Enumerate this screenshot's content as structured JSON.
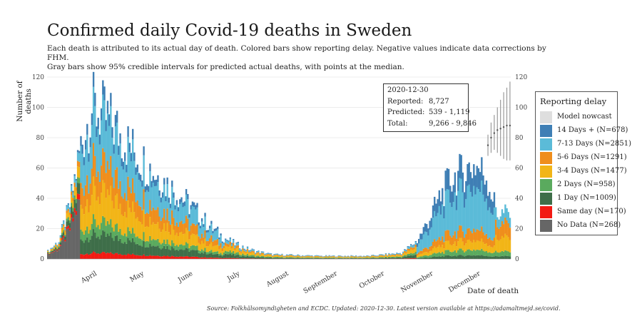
{
  "title": "Confirmed daily Covid-19 deaths in Sweden",
  "subtitle_line1": "Each death is attributed to its actual day of death. Colored bars show reporting delay. Negative values indicate data corrections by FHM.",
  "subtitle_line2": "Gray bars show 95% credible intervals for predicted actual deaths, with points at the median.",
  "source": "Source: Folkhälsomyndigheten and ECDC. Updated: 2020-12-30. Latest version available at https://adamaltmejd.se/covid.",
  "info": {
    "date": "2020-12-30",
    "reported_label": "Reported:",
    "reported_value": "8,727",
    "predicted_label": "Predicted:",
    "predicted_value": "539 - 1,119",
    "total_label": "Total:",
    "total_value": "9,266 - 9,846"
  },
  "legend": {
    "title": "Reporting delay",
    "items": [
      {
        "label": "Model nowcast",
        "color": "#dedede"
      },
      {
        "label": "14 Days + (N=678)",
        "color": "#3f7fb5"
      },
      {
        "label": "7-13 Days (N=2851)",
        "color": "#5bbbd8"
      },
      {
        "label": "5-6 Days (N=1291)",
        "color": "#ef8e1c"
      },
      {
        "label": "3-4 Days (N=1477)",
        "color": "#f2b517"
      },
      {
        "label": "2 Days (N=958)",
        "color": "#5aaa5e"
      },
      {
        "label": "1 Day (N=1009)",
        "color": "#3e6e49"
      },
      {
        "label": "Same day (N=170)",
        "color": "#f21a13"
      },
      {
        "label": "No Data (N=268)",
        "color": "#666666"
      }
    ]
  },
  "chart_data": {
    "type": "bar",
    "stacked": true,
    "title": "Confirmed daily Covid-19 deaths in Sweden",
    "xlabel": "Date of death",
    "ylabel": "Number of deaths",
    "ylim": [
      0,
      120
    ],
    "yticks": [
      0,
      20,
      40,
      60,
      80,
      100,
      120
    ],
    "x_range": [
      "2020-03-11",
      "2020-12-30"
    ],
    "month_ticks": [
      "April",
      "May",
      "June",
      "July",
      "August",
      "September",
      "October",
      "November",
      "December"
    ],
    "series_order": [
      "No Data",
      "Same day",
      "1 Day",
      "2 Days",
      "3-4 Days",
      "5-6 Days",
      "7-13 Days",
      "14 Days +"
    ],
    "series_colors": {
      "No Data": "#666666",
      "Same day": "#f21a13",
      "1 Day": "#3e6e49",
      "2 Days": "#5aaa5e",
      "3-4 Days": "#f2b517",
      "5-6 Days": "#ef8e1c",
      "7-13 Days": "#5bbbd8",
      "14 Days +": "#3f7fb5"
    },
    "approx_daily_totals_weekly": [
      {
        "week_start": "2020-03-11",
        "total": 5
      },
      {
        "week_start": "2020-03-18",
        "total": 12
      },
      {
        "week_start": "2020-03-25",
        "total": 35
      },
      {
        "week_start": "2020-04-01",
        "total": 75
      },
      {
        "week_start": "2020-04-08",
        "total": 100
      },
      {
        "week_start": "2020-04-15",
        "total": 95
      },
      {
        "week_start": "2020-04-22",
        "total": 88
      },
      {
        "week_start": "2020-04-29",
        "total": 78
      },
      {
        "week_start": "2020-05-06",
        "total": 70
      },
      {
        "week_start": "2020-05-13",
        "total": 62
      },
      {
        "week_start": "2020-05-20",
        "total": 55
      },
      {
        "week_start": "2020-05-27",
        "total": 48
      },
      {
        "week_start": "2020-06-03",
        "total": 42
      },
      {
        "week_start": "2020-06-10",
        "total": 35
      },
      {
        "week_start": "2020-06-17",
        "total": 27
      },
      {
        "week_start": "2020-06-24",
        "total": 20
      },
      {
        "week_start": "2020-07-01",
        "total": 14
      },
      {
        "week_start": "2020-07-08",
        "total": 10
      },
      {
        "week_start": "2020-07-15",
        "total": 7
      },
      {
        "week_start": "2020-07-22",
        "total": 5
      },
      {
        "week_start": "2020-08-01",
        "total": 3
      },
      {
        "week_start": "2020-09-01",
        "total": 2
      },
      {
        "week_start": "2020-10-01",
        "total": 2
      },
      {
        "week_start": "2020-10-22",
        "total": 4
      },
      {
        "week_start": "2020-11-01",
        "total": 12
      },
      {
        "week_start": "2020-11-08",
        "total": 25
      },
      {
        "week_start": "2020-11-15",
        "total": 40
      },
      {
        "week_start": "2020-11-22",
        "total": 52
      },
      {
        "week_start": "2020-12-01",
        "total": 58
      },
      {
        "week_start": "2020-12-08",
        "total": 62
      },
      {
        "week_start": "2020-12-15",
        "total": 55
      },
      {
        "week_start": "2020-12-22",
        "total": 30
      }
    ],
    "nowcast_intervals": [
      {
        "date": "2020-12-16",
        "low": 68,
        "median": 75,
        "high": 82
      },
      {
        "date": "2020-12-18",
        "low": 70,
        "median": 80,
        "high": 90
      },
      {
        "date": "2020-12-20",
        "low": 72,
        "median": 83,
        "high": 95
      },
      {
        "date": "2020-12-22",
        "low": 70,
        "median": 85,
        "high": 100
      },
      {
        "date": "2020-12-24",
        "low": 68,
        "median": 86,
        "high": 105
      },
      {
        "date": "2020-12-26",
        "low": 66,
        "median": 87,
        "high": 110
      },
      {
        "date": "2020-12-28",
        "low": 65,
        "median": 88,
        "high": 113
      },
      {
        "date": "2020-12-30",
        "low": 65,
        "median": 88,
        "high": 117
      }
    ]
  }
}
